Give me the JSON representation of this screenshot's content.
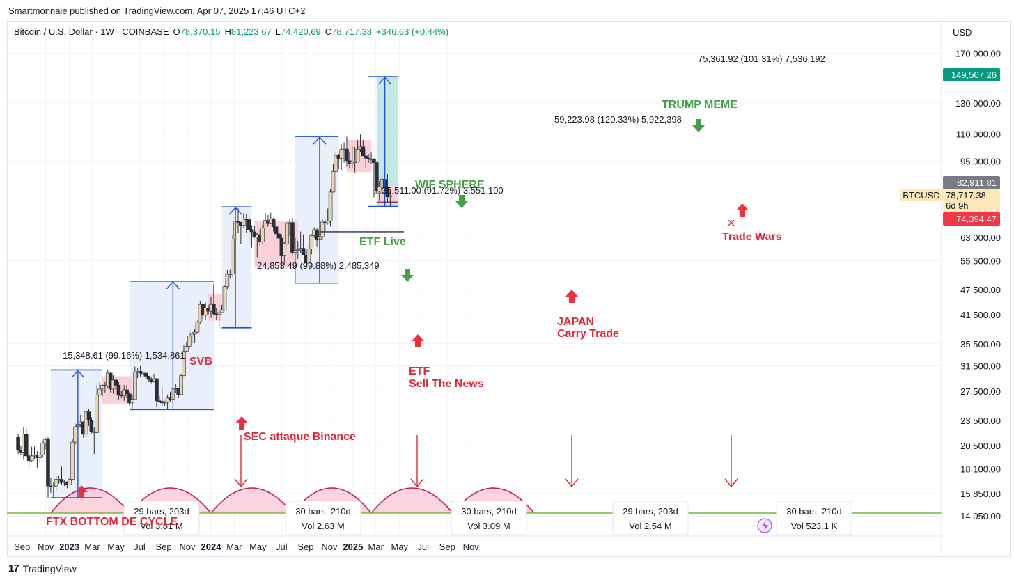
{
  "header": {
    "published": "Smartmonnaie published on TradingView.com, Apr 07, 2025 17:46 UTC+2",
    "symbol": "Bitcoin / U.S. Dollar · 1W · COINBASE",
    "ohlc": {
      "o_label": "O",
      "o": "78,370.15",
      "h_label": "H",
      "h": "81,223.67",
      "l_label": "L",
      "l": "74,420.69",
      "c_label": "C",
      "c": "78,717.38",
      "change": "+346.63 (+0.44%)"
    }
  },
  "axis": {
    "currency": "USD",
    "y_ticks": [
      "170,000.00",
      "130,000.00",
      "110,000.00",
      "95,000.00",
      "63,000.00",
      "55,500.00",
      "47,500.00",
      "41,500.00",
      "35,500.00",
      "31,500.00",
      "27,500.00",
      "23,500.00",
      "20,500.00",
      "18,100.00",
      "15,850.00",
      "14,050.00"
    ],
    "x_ticks": [
      "Sep",
      "Nov",
      "2023",
      "Mar",
      "May",
      "Jul",
      "Sep",
      "Nov",
      "2024",
      "Mar",
      "May",
      "Jul",
      "Sep",
      "Nov",
      "2025",
      "Mar",
      "May",
      "Jul",
      "Sep",
      "Nov"
    ],
    "bold_x_ticks": [
      "2023",
      "2024",
      "2025"
    ]
  },
  "price_badges": {
    "target": "149,507.26",
    "high_marker": "82,911.81",
    "symbol": "BTCUSD",
    "last": "78,717.38",
    "countdown": "6d 9h",
    "stop": "74,394.47"
  },
  "colors": {
    "up_candle": "#e8d4b4",
    "down_candle": "#2a2e39",
    "measure_blue": "#1e4fd8",
    "measure_fill": "#e8eefb",
    "red_zone": "#f7c6ce",
    "red_label": "#e0283a",
    "green_label": "#43a047",
    "arc_fill": "#f8c7d6",
    "arc_line": "#c2185b",
    "teal_fill": "#b9e3e1",
    "teal_badge": "#089981",
    "red_badge": "#f23645",
    "gray_badge": "#787b86",
    "btc_badge": "#fde8b8"
  },
  "annotations": {
    "measure1": "15,348.61 (99.16%) 1,534,861",
    "measure2": "24,853.49 (99.88%) 2,485,349",
    "measure3": "35,511.00 (91.72%) 3,551,100",
    "measure4": "59,223.98 (120.33%) 5,922,398",
    "measure5": "75,361.92 (101.31%) 7,536,192",
    "svb": "SVB",
    "sec": "SEC attaque Binance",
    "etf_live": "ETF Live",
    "etf_sell_1": "ETF",
    "etf_sell_2": "Sell The News",
    "wif": "WIF SPHERE",
    "japan_1": "JAPAN",
    "japan_2": "Carry Trade",
    "trump": "TRUMP MEME",
    "trade_wars": "Trade Wars",
    "ftx": "FTX BOTTOM DE CYCLE"
  },
  "cycles": [
    {
      "bars": "29 bars, 203d",
      "vol": "Vol 3.81 M"
    },
    {
      "bars": "30 bars, 210d",
      "vol": "Vol 2.63 M"
    },
    {
      "bars": "30 bars, 210d",
      "vol": "Vol 3.09 M"
    },
    {
      "bars": "29 bars, 203d",
      "vol": "Vol 2.54 M"
    },
    {
      "bars": "30 bars, 210d",
      "vol": "Vol 523.1 K"
    }
  ],
  "footer": {
    "brand": "TradingView",
    "logo": "17"
  },
  "chart_data": {
    "type": "candlestick",
    "symbol": "BTCUSD",
    "interval": "1W",
    "exchange": "COINBASE",
    "y_scale": "log",
    "ylim": [
      13500,
      180000
    ],
    "x_range": [
      "2022-08-15",
      "2025-11-30"
    ],
    "grid": true,
    "candles": [
      [
        "2022-08-22",
        21500,
        21800,
        19600,
        20000
      ],
      [
        "2022-08-29",
        20000,
        20500,
        19500,
        19800
      ],
      [
        "2022-09-05",
        19800,
        22700,
        19000,
        21800
      ],
      [
        "2022-09-12",
        21800,
        22500,
        19300,
        19400
      ],
      [
        "2022-09-19",
        19400,
        19900,
        18300,
        18900
      ],
      [
        "2022-09-26",
        18900,
        20400,
        18800,
        19400
      ],
      [
        "2022-10-03",
        19400,
        20400,
        19100,
        19500
      ],
      [
        "2022-10-10",
        19500,
        19900,
        18200,
        19200
      ],
      [
        "2022-10-17",
        19200,
        19700,
        18700,
        19500
      ],
      [
        "2022-10-24",
        19500,
        21000,
        19300,
        20800
      ],
      [
        "2022-10-31",
        20800,
        21400,
        20100,
        21200
      ],
      [
        "2022-11-07",
        21200,
        21500,
        15500,
        16500
      ],
      [
        "2022-11-14",
        16500,
        17200,
        15900,
        16400
      ],
      [
        "2022-11-21",
        16400,
        16800,
        15500,
        16500
      ],
      [
        "2022-11-28",
        16500,
        17400,
        16100,
        17100
      ],
      [
        "2022-12-05",
        17100,
        17400,
        16700,
        17100
      ],
      [
        "2022-12-12",
        17100,
        18300,
        16600,
        16800
      ],
      [
        "2022-12-19",
        16800,
        17000,
        16500,
        16850
      ],
      [
        "2022-12-26",
        16850,
        16950,
        16300,
        16600
      ],
      [
        "2023-01-02",
        16600,
        17200,
        16500,
        17100
      ],
      [
        "2023-01-09",
        17100,
        21200,
        17000,
        20900
      ],
      [
        "2023-01-16",
        20900,
        23100,
        20600,
        22700
      ],
      [
        "2023-01-23",
        22700,
        23800,
        22400,
        23000
      ],
      [
        "2023-01-30",
        23000,
        24200,
        22600,
        23300
      ],
      [
        "2023-02-06",
        23300,
        23400,
        21400,
        21800
      ],
      [
        "2023-02-13",
        21800,
        25200,
        21400,
        24600
      ],
      [
        "2023-02-20",
        24600,
        25000,
        22800,
        23500
      ],
      [
        "2023-02-27",
        23500,
        23900,
        21900,
        22100
      ],
      [
        "2023-03-06",
        22100,
        22600,
        19600,
        22000
      ],
      [
        "2023-03-13",
        22000,
        28400,
        21900,
        26900
      ],
      [
        "2023-03-20",
        26900,
        28800,
        26800,
        27800
      ],
      [
        "2023-03-27",
        27800,
        28600,
        26800,
        28400
      ],
      [
        "2023-04-03",
        28400,
        29000,
        27300,
        28300
      ],
      [
        "2023-04-10",
        28300,
        30900,
        28000,
        30300
      ],
      [
        "2023-04-17",
        30300,
        30500,
        27300,
        27800
      ],
      [
        "2023-04-24",
        27800,
        30000,
        27100,
        29200
      ],
      [
        "2023-05-01",
        29200,
        29700,
        28100,
        28400
      ],
      [
        "2023-05-08",
        28400,
        28900,
        26300,
        26900
      ],
      [
        "2023-05-15",
        26900,
        27500,
        26500,
        26800
      ],
      [
        "2023-05-22",
        26800,
        28400,
        26100,
        27700
      ],
      [
        "2023-05-29",
        27700,
        28400,
        26500,
        27100
      ],
      [
        "2023-06-05",
        27100,
        27400,
        25400,
        25800
      ],
      [
        "2023-06-12",
        25800,
        27000,
        24800,
        26300
      ],
      [
        "2023-06-19",
        26300,
        31400,
        26200,
        30500
      ],
      [
        "2023-06-26",
        30500,
        31200,
        29500,
        30600
      ],
      [
        "2023-07-03",
        30600,
        31500,
        29700,
        30300
      ],
      [
        "2023-07-10",
        30300,
        31800,
        29900,
        30300
      ],
      [
        "2023-07-17",
        30300,
        30400,
        29500,
        29800
      ],
      [
        "2023-07-24",
        29800,
        29900,
        28900,
        29300
      ],
      [
        "2023-07-31",
        29300,
        29700,
        28700,
        29000
      ],
      [
        "2023-08-07",
        29000,
        30200,
        28800,
        29400
      ],
      [
        "2023-08-14",
        29400,
        29500,
        25200,
        26100
      ],
      [
        "2023-08-21",
        26100,
        26800,
        25800,
        26000
      ],
      [
        "2023-08-28",
        26000,
        28100,
        25400,
        25800
      ],
      [
        "2023-09-04",
        25800,
        26100,
        25400,
        25900
      ],
      [
        "2023-09-11",
        25900,
        27000,
        24900,
        26600
      ],
      [
        "2023-09-18",
        26600,
        27400,
        26000,
        26300
      ],
      [
        "2023-09-25",
        26300,
        28000,
        26100,
        27900
      ],
      [
        "2023-10-02",
        27900,
        28600,
        27200,
        27900
      ],
      [
        "2023-10-09",
        27900,
        28000,
        26500,
        27000
      ],
      [
        "2023-10-16",
        27000,
        30200,
        26900,
        29900
      ],
      [
        "2023-10-23",
        29900,
        35200,
        29800,
        34100
      ],
      [
        "2023-10-30",
        34100,
        35900,
        33900,
        35000
      ],
      [
        "2023-11-06",
        35000,
        38000,
        34600,
        37000
      ],
      [
        "2023-11-13",
        37000,
        37900,
        35500,
        37400
      ],
      [
        "2023-11-20",
        37400,
        38400,
        35700,
        37800
      ],
      [
        "2023-11-27",
        37800,
        40200,
        37500,
        39900
      ],
      [
        "2023-12-04",
        39900,
        44700,
        39600,
        43900
      ],
      [
        "2023-12-11",
        43900,
        44000,
        40500,
        41400
      ],
      [
        "2023-12-18",
        41400,
        44300,
        40500,
        43000
      ],
      [
        "2023-12-25",
        43000,
        43800,
        41600,
        42300
      ],
      [
        "2024-01-01",
        42300,
        45800,
        40800,
        43900
      ],
      [
        "2024-01-08",
        43900,
        48900,
        41500,
        41700
      ],
      [
        "2024-01-15",
        41700,
        43100,
        40300,
        41600
      ],
      [
        "2024-01-22",
        41600,
        42200,
        38500,
        42000
      ],
      [
        "2024-01-29",
        42000,
        43800,
        41800,
        42600
      ],
      [
        "2024-02-05",
        42600,
        48500,
        42400,
        48300
      ],
      [
        "2024-02-12",
        48300,
        52800,
        47700,
        51600
      ],
      [
        "2024-02-19",
        51600,
        52900,
        50500,
        51700
      ],
      [
        "2024-02-26",
        51700,
        63900,
        50800,
        62400
      ],
      [
        "2024-03-04",
        62400,
        69000,
        59000,
        68800
      ],
      [
        "2024-03-11",
        68800,
        73700,
        64600,
        68300
      ],
      [
        "2024-03-18",
        68300,
        68500,
        60800,
        67200
      ],
      [
        "2024-03-25",
        67200,
        71700,
        66500,
        69600
      ],
      [
        "2024-04-01",
        69600,
        71300,
        64500,
        69300
      ],
      [
        "2024-04-08",
        69300,
        71700,
        60900,
        65700
      ],
      [
        "2024-04-15",
        65700,
        67200,
        59600,
        64900
      ],
      [
        "2024-04-22",
        64900,
        67100,
        62800,
        63100
      ],
      [
        "2024-04-29",
        63100,
        64500,
        56600,
        63900
      ],
      [
        "2024-05-06",
        63900,
        65500,
        60200,
        61500
      ],
      [
        "2024-05-13",
        61500,
        67400,
        60800,
        66300
      ],
      [
        "2024-05-20",
        66300,
        71900,
        66200,
        69000
      ],
      [
        "2024-05-27",
        69000,
        71000,
        66700,
        67800
      ],
      [
        "2024-06-03",
        67800,
        71900,
        68200,
        69600
      ],
      [
        "2024-06-10",
        69600,
        70000,
        65000,
        66700
      ],
      [
        "2024-06-17",
        66700,
        67000,
        63400,
        64200
      ],
      [
        "2024-06-24",
        64200,
        64500,
        58400,
        62700
      ],
      [
        "2024-07-01",
        62700,
        63800,
        53500,
        57000
      ],
      [
        "2024-07-08",
        57000,
        61400,
        54300,
        60800
      ],
      [
        "2024-07-15",
        60800,
        68300,
        60600,
        67900
      ],
      [
        "2024-07-22",
        67900,
        69400,
        63400,
        68200
      ],
      [
        "2024-07-29",
        68200,
        70000,
        57100,
        58100
      ],
      [
        "2024-08-05",
        58100,
        62800,
        49100,
        58700
      ],
      [
        "2024-08-12",
        58700,
        61800,
        56100,
        58900
      ],
      [
        "2024-08-19",
        58900,
        65000,
        57800,
        59400
      ],
      [
        "2024-08-26",
        59400,
        64000,
        57100,
        57300
      ],
      [
        "2024-09-02",
        57300,
        59800,
        52500,
        54800
      ],
      [
        "2024-09-09",
        54800,
        60600,
        54600,
        59200
      ],
      [
        "2024-09-16",
        59200,
        64100,
        57500,
        63600
      ],
      [
        "2024-09-23",
        63600,
        66500,
        62700,
        65600
      ],
      [
        "2024-09-30",
        65600,
        66100,
        59800,
        62100
      ],
      [
        "2024-10-07",
        62100,
        64400,
        58900,
        63200
      ],
      [
        "2024-10-14",
        63200,
        69500,
        62100,
        68400
      ],
      [
        "2024-10-21",
        68400,
        69500,
        65100,
        68000
      ],
      [
        "2024-10-28",
        68000,
        73600,
        67500,
        68700
      ],
      [
        "2024-11-04",
        68700,
        81800,
        66800,
        80400
      ],
      [
        "2024-11-11",
        80400,
        93500,
        80200,
        89800
      ],
      [
        "2024-11-18",
        89800,
        99600,
        89400,
        98000
      ],
      [
        "2024-11-25",
        98000,
        98800,
        90800,
        96400
      ],
      [
        "2024-12-02",
        96400,
        104000,
        90600,
        101200
      ],
      [
        "2024-12-09",
        101200,
        105200,
        94200,
        101400
      ],
      [
        "2024-12-16",
        101400,
        108300,
        92100,
        95200
      ],
      [
        "2024-12-23",
        95200,
        99900,
        91500,
        93700
      ],
      [
        "2024-12-30",
        93700,
        102700,
        91700,
        94500
      ],
      [
        "2025-01-06",
        94500,
        102500,
        89300,
        94500
      ],
      [
        "2025-01-13",
        94500,
        106400,
        94300,
        101300
      ],
      [
        "2025-01-20",
        101300,
        109600,
        99500,
        102600
      ],
      [
        "2025-01-27",
        102600,
        106500,
        97800,
        97700
      ],
      [
        "2025-02-03",
        97700,
        101500,
        91200,
        96500
      ],
      [
        "2025-02-10",
        96500,
        98700,
        94100,
        96100
      ],
      [
        "2025-02-17",
        96100,
        99400,
        93400,
        96100
      ],
      [
        "2025-02-24",
        96100,
        96500,
        78200,
        94200
      ],
      [
        "2025-03-03",
        94200,
        95000,
        80000,
        80700
      ],
      [
        "2025-03-10",
        80700,
        85300,
        76600,
        82600
      ],
      [
        "2025-03-17",
        82600,
        87400,
        81200,
        86100
      ],
      [
        "2025-03-24",
        86100,
        88800,
        81600,
        82400
      ],
      [
        "2025-03-31",
        82400,
        88500,
        76200,
        78370
      ],
      [
        "2025-04-07",
        78370,
        81224,
        74421,
        78717
      ]
    ],
    "measurements": [
      {
        "label": "15,348.61 (99.16%) 1,534,861",
        "from": 15478,
        "to": 30826
      },
      {
        "label": "24,853.49 (99.88%) 2,485,349",
        "from": 24900,
        "to": 49753
      },
      {
        "label": "35,511.00 (91.72%) 3,551,100",
        "from": 38700,
        "to": 74211
      },
      {
        "label": "59,223.98 (120.33%) 5,922,398",
        "from": 49210,
        "to": 108434
      },
      {
        "label": "75,361.92 (101.31%) 7,536,192",
        "from": 74394,
        "to": 149756
      }
    ],
    "cycles": [
      {
        "bars": 29,
        "days": 203,
        "volume": "3.81 M"
      },
      {
        "bars": 30,
        "days": 210,
        "volume": "2.63 M"
      },
      {
        "bars": 30,
        "days": 210,
        "volume": "3.09 M"
      },
      {
        "bars": 29,
        "days": 203,
        "volume": "2.54 M"
      },
      {
        "bars": 30,
        "days": 210,
        "volume": "523.1 K"
      }
    ],
    "price_levels": {
      "last": 78717.38,
      "target": 149507.26,
      "stop": 74394.47,
      "marker": 82911.81
    }
  }
}
